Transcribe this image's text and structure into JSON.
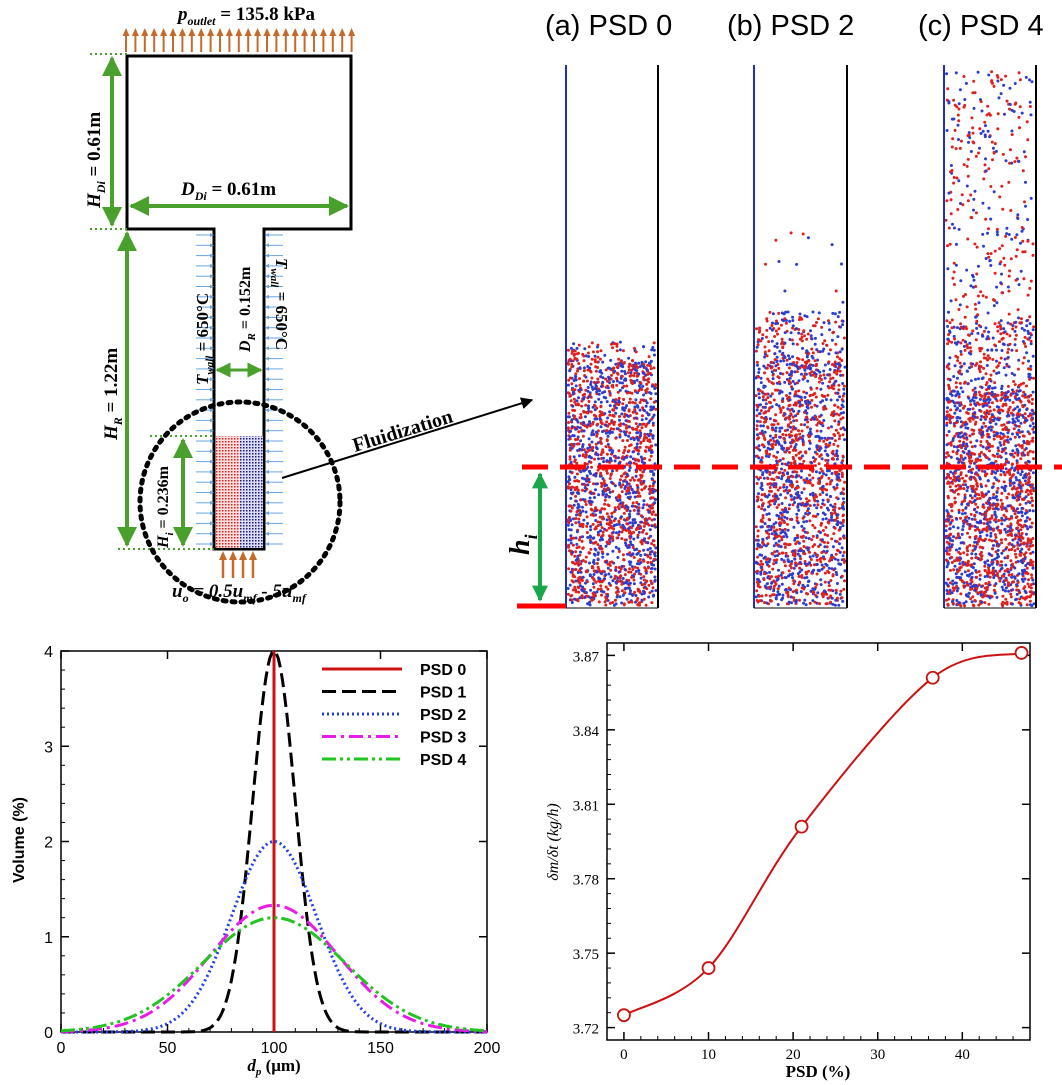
{
  "reactor": {
    "outlet_label": "p",
    "outlet_sub": "outlet",
    "outlet_value": " = 135.8 kPa",
    "hdi_label": "H",
    "hdi_sub": "Di",
    "hdi_value": " = 0.61m",
    "ddi_label": "D",
    "ddi_sub": "Di",
    "ddi_value": " = 0.61m",
    "hr_label": "H",
    "hr_sub": "R",
    "hr_value": " = 1.22m",
    "twall_left_label": "T",
    "twall_left_sub": "wall",
    "twall_left_value": " = 650°C",
    "twall_right_label": "T",
    "twall_right_sub": "wall",
    "twall_right_value": " = 650°C",
    "dr_label": "D",
    "dr_sub": "R",
    "dr_value": " = 0.152m",
    "hi_label": "H",
    "hi_sub": "i",
    "hi_value": " = 0.236m",
    "inlet_text": "u",
    "inlet_sub_o": "o",
    "inlet_mid": " = 0.5u",
    "inlet_sub_mf1": "mf",
    "inlet_mid2": " - 5u",
    "inlet_sub_mf2": "mf",
    "fluidization_label": "Fluidization"
  },
  "snapshots": {
    "panels": [
      "(a) PSD 0",
      "(b) PSD 2",
      "(c) PSD 4"
    ],
    "hi_label": "h",
    "hi_sub": "i",
    "colors": {
      "red": "#e0201c",
      "blue": "#2b3ccf",
      "dash": "#ff0000",
      "arrow": "#1aa64a"
    }
  },
  "chart_data": [
    {
      "type": "line",
      "xlabel": "d",
      "xlabel_sub": "p",
      "xlabel_unit": " (μm)",
      "ylabel": "Volume (%)",
      "xlim": [
        0,
        200
      ],
      "ylim": [
        0,
        4
      ],
      "xticks": [
        "0",
        "50",
        "100",
        "150",
        "200"
      ],
      "yticks": [
        "0",
        "1",
        "2",
        "3",
        "4"
      ],
      "legend_position": "top-right",
      "series": [
        {
          "name": "PSD 0",
          "color": "#cc1111",
          "style": "solid",
          "mean": 100,
          "peak": 4.0,
          "kind": "spike"
        },
        {
          "name": "PSD 1",
          "color": "#000000",
          "style": "dash",
          "mean": 100,
          "peak": 4.0,
          "sigma": 10
        },
        {
          "name": "PSD 2",
          "color": "#1f3fe6",
          "style": "dot",
          "mean": 100,
          "peak": 2.0,
          "sigma": 20
        },
        {
          "name": "PSD 3",
          "color": "#e81be8",
          "style": "dashdot",
          "mean": 100,
          "peak": 1.33,
          "sigma": 30
        },
        {
          "name": "PSD 4",
          "color": "#22c422",
          "style": "dashdotdot",
          "mean": 100,
          "peak": 1.2,
          "sigma": 33.3
        }
      ]
    },
    {
      "type": "line",
      "xlabel": "PSD (%)",
      "ylabel": "δm/δt (kg/h)",
      "xlim": [
        -2,
        48
      ],
      "ylim": [
        3.715,
        3.875
      ],
      "xticks": [
        0,
        10,
        20,
        30,
        40
      ],
      "yticks": [
        "3.72",
        "3.75",
        "3.78",
        "3.81",
        "3.84",
        "3.87"
      ],
      "series": [
        {
          "name": "",
          "color": "#cc1111",
          "marker": "open-circle",
          "x": [
            0,
            10,
            21,
            36.5,
            47
          ],
          "y": [
            3.725,
            3.744,
            3.801,
            3.861,
            3.871
          ]
        }
      ]
    }
  ]
}
